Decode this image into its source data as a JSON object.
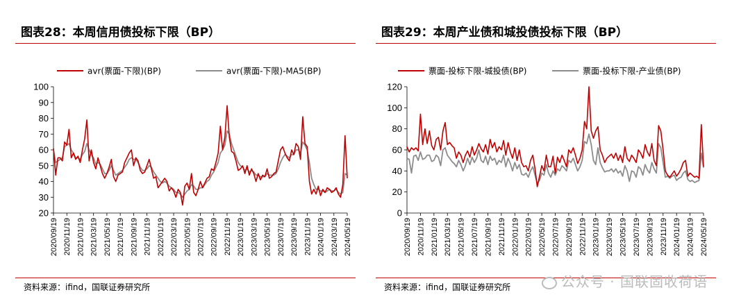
{
  "chart_data": [
    {
      "type": "line",
      "title": "图表28：本周信用债投标下限（BP）",
      "source": "资料来源：ifind，国联证券研究所",
      "xlabel": "",
      "ylabel": "",
      "ylim": [
        20,
        100
      ],
      "yticks": [
        20,
        30,
        40,
        50,
        60,
        70,
        80,
        90,
        100
      ],
      "xticks": [
        "2020/09/19",
        "2020/11/19",
        "2021/01/19",
        "2021/03/19",
        "2021/05/19",
        "2021/07/19",
        "2021/09/19",
        "2021/11/19",
        "2022/01/19",
        "2022/03/19",
        "2022/05/19",
        "2022/07/19",
        "2022/09/19",
        "2022/11/19",
        "2023/01/19",
        "2023/03/19",
        "2023/05/19",
        "2023/07/19",
        "2023/09/19",
        "2023/11/19",
        "2024/01/19",
        "2024/03/19",
        "2024/05/19"
      ],
      "legend_position": "top",
      "colors": {
        "series_1": "#c00000",
        "series_2": "#8c8c8c"
      },
      "series": [
        {
          "name": "avr(票面-下限)(BP)",
          "values": [
            61,
            44,
            55,
            55,
            53,
            65,
            63,
            73,
            55,
            58,
            54,
            56,
            52,
            60,
            67,
            79,
            53,
            60,
            52,
            48,
            55,
            50,
            45,
            42,
            45,
            49,
            54,
            43,
            40,
            44,
            45,
            46,
            52,
            55,
            58,
            60,
            50,
            55,
            53,
            47,
            45,
            46,
            50,
            54,
            48,
            42,
            43,
            36,
            38,
            40,
            42,
            40,
            34,
            36,
            34,
            30,
            35,
            33,
            25,
            37,
            39,
            35,
            45,
            33,
            31,
            35,
            40,
            36,
            39,
            42,
            43,
            48,
            47,
            52,
            58,
            75,
            60,
            68,
            88,
            68,
            59,
            58,
            53,
            47,
            48,
            50,
            45,
            50,
            44,
            48,
            45,
            40,
            45,
            41,
            44,
            43,
            48,
            42,
            43,
            45,
            46,
            53,
            60,
            62,
            58,
            55,
            53,
            60,
            57,
            64,
            62,
            54,
            81,
            64,
            62,
            40,
            32,
            35,
            32,
            37,
            31,
            35,
            33,
            36,
            35,
            33,
            34,
            36,
            32,
            30,
            38,
            69,
            42
          ]
        },
        {
          "name": "avr(票面-下限)-MA5(BP)",
          "values": [
            60,
            52,
            53,
            54,
            55,
            62,
            63,
            64,
            60,
            58,
            55,
            55,
            54,
            57,
            59,
            64,
            60,
            57,
            55,
            51,
            52,
            51,
            48,
            45,
            45,
            47,
            50,
            47,
            44,
            45,
            46,
            47,
            49,
            51,
            54,
            55,
            54,
            54,
            52,
            49,
            47,
            47,
            48,
            50,
            49,
            46,
            44,
            42,
            40,
            39,
            40,
            39,
            37,
            36,
            35,
            33,
            33,
            32,
            30,
            32,
            34,
            35,
            38,
            37,
            35,
            35,
            36,
            36,
            38,
            40,
            41,
            44,
            46,
            49,
            52,
            58,
            60,
            63,
            72,
            70,
            64,
            60,
            56,
            52,
            50,
            49,
            47,
            48,
            46,
            47,
            46,
            44,
            44,
            43,
            43,
            43,
            45,
            44,
            44,
            44,
            45,
            48,
            52,
            55,
            57,
            56,
            55,
            57,
            57,
            60,
            60,
            58,
            65,
            63,
            60,
            52,
            42,
            38,
            35,
            35,
            34,
            34,
            33,
            34,
            35,
            34,
            34,
            35,
            33,
            32,
            33,
            45,
            44
          ]
        }
      ]
    },
    {
      "type": "line",
      "title": "图表29：本周产业债和城投债投标下限（BP）",
      "source": "资料来源：ifind，国联证券研究所",
      "xlabel": "",
      "ylabel": "",
      "ylim": [
        0,
        120
      ],
      "yticks": [
        0,
        20,
        40,
        60,
        80,
        100,
        120
      ],
      "xticks": [
        "2020/09/19",
        "2020/11/19",
        "2021/01/19",
        "2021/03/19",
        "2021/05/19",
        "2021/07/19",
        "2021/09/19",
        "2021/11/19",
        "2022/01/19",
        "2022/03/19",
        "2022/05/19",
        "2022/07/19",
        "2022/09/19",
        "2022/11/19",
        "2023/01/19",
        "2023/03/19",
        "2023/05/19",
        "2023/07/19",
        "2023/09/19",
        "2023/11/19",
        "2024/01/19",
        "2024/03/19",
        "2024/05/19"
      ],
      "legend_position": "top",
      "colors": {
        "series_1": "#c00000",
        "series_2": "#8c8c8c"
      },
      "series": [
        {
          "name": "票面-投标下限-城投债(BP)",
          "values": [
            63,
            58,
            62,
            60,
            62,
            59,
            94,
            65,
            80,
            66,
            78,
            64,
            60,
            70,
            72,
            60,
            78,
            86,
            65,
            67,
            64,
            62,
            52,
            58,
            55,
            48,
            55,
            59,
            53,
            63,
            55,
            60,
            66,
            61,
            58,
            65,
            56,
            70,
            62,
            67,
            58,
            63,
            60,
            69,
            55,
            67,
            58,
            52,
            62,
            50,
            60,
            48,
            44,
            45,
            40,
            50,
            55,
            42,
            25,
            35,
            45,
            40,
            55,
            44,
            44,
            54,
            38,
            53,
            48,
            55,
            50,
            44,
            60,
            57,
            62,
            55,
            47,
            52,
            60,
            87,
            80,
            120,
            78,
            71,
            78,
            82,
            60,
            55,
            48,
            52,
            54,
            56,
            52,
            57,
            50,
            55,
            48,
            63,
            52,
            49,
            55,
            52,
            48,
            60,
            57,
            52,
            65,
            58,
            54,
            66,
            50,
            45,
            83,
            78,
            60,
            40,
            36,
            34,
            37,
            40,
            35,
            38,
            42,
            48,
            50,
            35,
            38,
            36,
            34,
            35,
            33,
            84,
            44
          ]
        },
        {
          "name": "票面-投标下限-产业债(BP)",
          "values": [
            52,
            51,
            38,
            54,
            55,
            50,
            58,
            51,
            52,
            55,
            55,
            49,
            50,
            55,
            53,
            45,
            60,
            62,
            55,
            52,
            49,
            47,
            44,
            50,
            46,
            40,
            45,
            52,
            46,
            53,
            48,
            52,
            60,
            50,
            48,
            54,
            46,
            54,
            50,
            52,
            46,
            50,
            48,
            55,
            44,
            52,
            47,
            40,
            48,
            42,
            46,
            37,
            36,
            38,
            34,
            40,
            44,
            36,
            28,
            31,
            38,
            36,
            46,
            38,
            34,
            40,
            36,
            42,
            40,
            45,
            43,
            40,
            50,
            48,
            52,
            46,
            40,
            44,
            50,
            68,
            66,
            75,
            65,
            50,
            46,
            62,
            48,
            43,
            39,
            40,
            40,
            42,
            39,
            42,
            38,
            40,
            35,
            45,
            40,
            30,
            40,
            39,
            34,
            44,
            42,
            36,
            46,
            41,
            38,
            48,
            42,
            38,
            66,
            62,
            48,
            34,
            35,
            33,
            35,
            36,
            31,
            33,
            34,
            38,
            40,
            32,
            30,
            31,
            29,
            30,
            31,
            57,
            43
          ]
        }
      ]
    }
  ],
  "watermark": "公众号 · 国联固收荷语",
  "watermark_icon": "chat-bubble-icon"
}
